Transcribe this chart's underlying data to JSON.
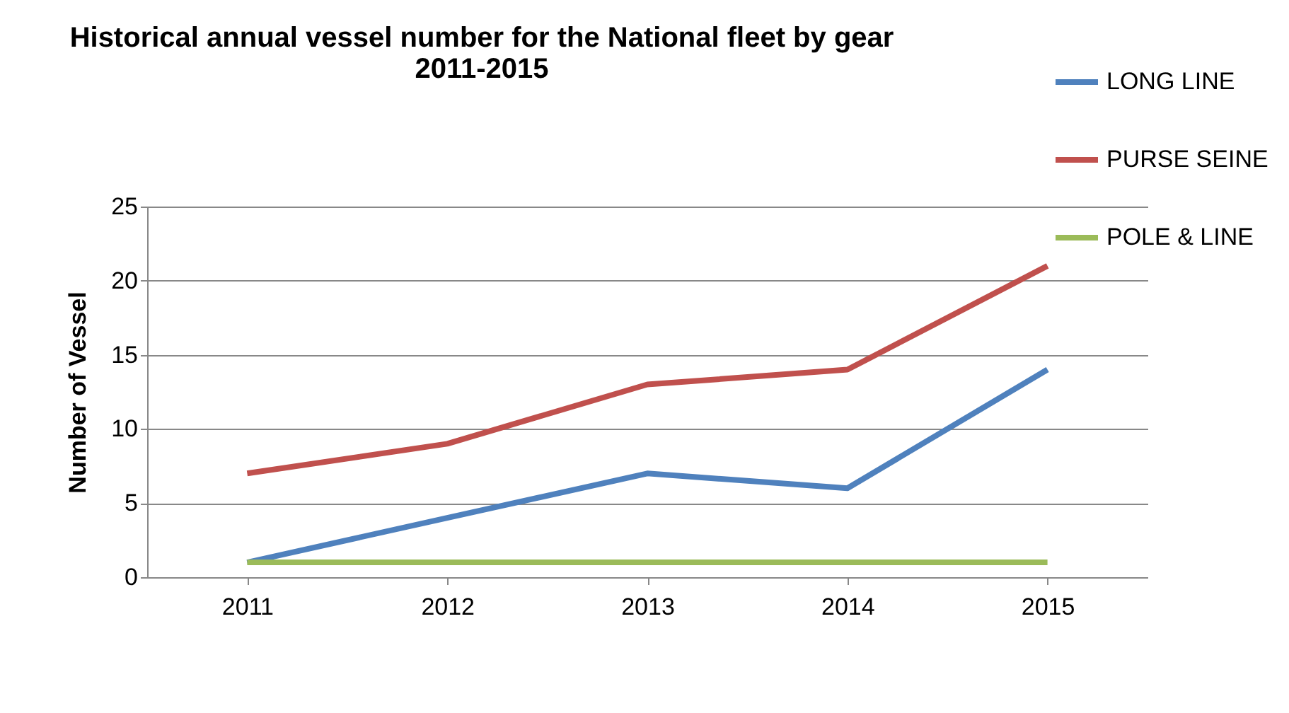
{
  "chart_data": {
    "type": "line",
    "title": [
      "Historical annual vessel number for the National fleet by gear",
      "2011-2015"
    ],
    "ylabel": "Number of Vessel",
    "categories": [
      "2011",
      "2012",
      "2013",
      "2014",
      "2015"
    ],
    "series": [
      {
        "name": "LONG LINE",
        "color": "#4f81bd",
        "values": [
          1,
          4,
          7,
          6,
          14
        ]
      },
      {
        "name": "PURSE SEINE",
        "color": "#c0504d",
        "values": [
          7,
          9,
          13,
          14,
          21
        ]
      },
      {
        "name": "POLE & LINE",
        "color": "#9bbb59",
        "values": [
          1,
          1,
          1,
          1,
          1
        ]
      }
    ],
    "ylim": [
      0,
      25
    ],
    "yticks": [
      0,
      5,
      10,
      15,
      20,
      25
    ],
    "grid": "y",
    "legend": "top right",
    "marker": "none",
    "line_style": "solid"
  }
}
